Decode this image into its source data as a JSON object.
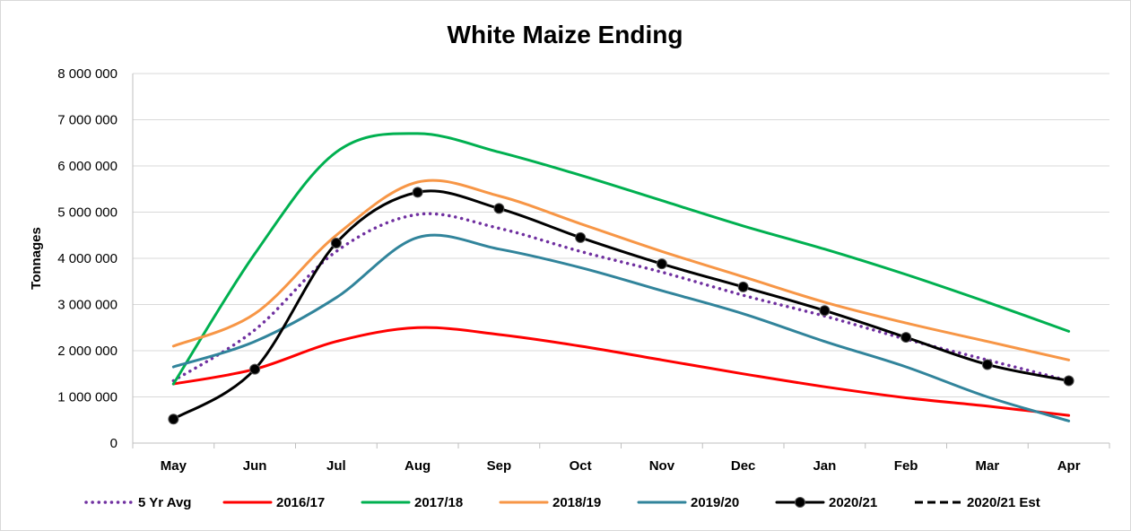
{
  "chart_data": {
    "type": "line",
    "title": "White Maize Ending",
    "xlabel": "",
    "ylabel": "Tonnages",
    "ylim": [
      0,
      8000000
    ],
    "ytick_values": [
      0,
      1000000,
      2000000,
      3000000,
      4000000,
      5000000,
      6000000,
      7000000,
      8000000
    ],
    "ytick_labels": [
      "0",
      "1 000 000",
      "2 000 000",
      "3 000 000",
      "4 000 000",
      "5 000 000",
      "6 000 000",
      "7 000 000",
      "8 000 000"
    ],
    "categories": [
      "May",
      "Jun",
      "Jul",
      "Aug",
      "Sep",
      "Oct",
      "Nov",
      "Dec",
      "Jan",
      "Feb",
      "Mar",
      "Apr"
    ],
    "grid": true,
    "legend_position": "bottom",
    "series": [
      {
        "name": "5 Yr Avg",
        "color": "#7030A0",
        "style": "dotted",
        "markers": false,
        "values": [
          1350000,
          2450000,
          4150000,
          4950000,
          4650000,
          4150000,
          3700000,
          3200000,
          2750000,
          2250000,
          1800000,
          1350000
        ]
      },
      {
        "name": "2016/17",
        "color": "#FF0000",
        "style": "solid",
        "markers": false,
        "values": [
          1280000,
          1600000,
          2200000,
          2500000,
          2350000,
          2100000,
          1800000,
          1500000,
          1220000,
          980000,
          800000,
          600000
        ]
      },
      {
        "name": "2017/18",
        "color": "#00B050",
        "style": "solid",
        "markers": false,
        "values": [
          1280000,
          4100000,
          6300000,
          6700000,
          6300000,
          5800000,
          5250000,
          4700000,
          4200000,
          3650000,
          3050000,
          2420000
        ]
      },
      {
        "name": "2018/19",
        "color": "#F79646",
        "style": "solid",
        "markers": false,
        "values": [
          2100000,
          2800000,
          4500000,
          5650000,
          5350000,
          4750000,
          4150000,
          3600000,
          3050000,
          2600000,
          2200000,
          1800000
        ]
      },
      {
        "name": "2019/20",
        "color": "#31849B",
        "style": "solid",
        "markers": false,
        "values": [
          1650000,
          2200000,
          3150000,
          4450000,
          4200000,
          3800000,
          3300000,
          2800000,
          2200000,
          1650000,
          1000000,
          480000
        ]
      },
      {
        "name": "2020/21",
        "color": "#000000",
        "style": "solid",
        "markers": true,
        "values": [
          520000,
          1600000,
          4330000,
          5430000,
          5080000,
          4450000,
          3880000,
          3380000,
          2870000,
          2290000,
          1700000,
          1350000
        ]
      },
      {
        "name": "2020/21 Est",
        "color": "#000000",
        "style": "dashed",
        "markers": false,
        "values": [
          null,
          null,
          null,
          null,
          null,
          null,
          null,
          null,
          null,
          null,
          null,
          null
        ]
      }
    ]
  }
}
